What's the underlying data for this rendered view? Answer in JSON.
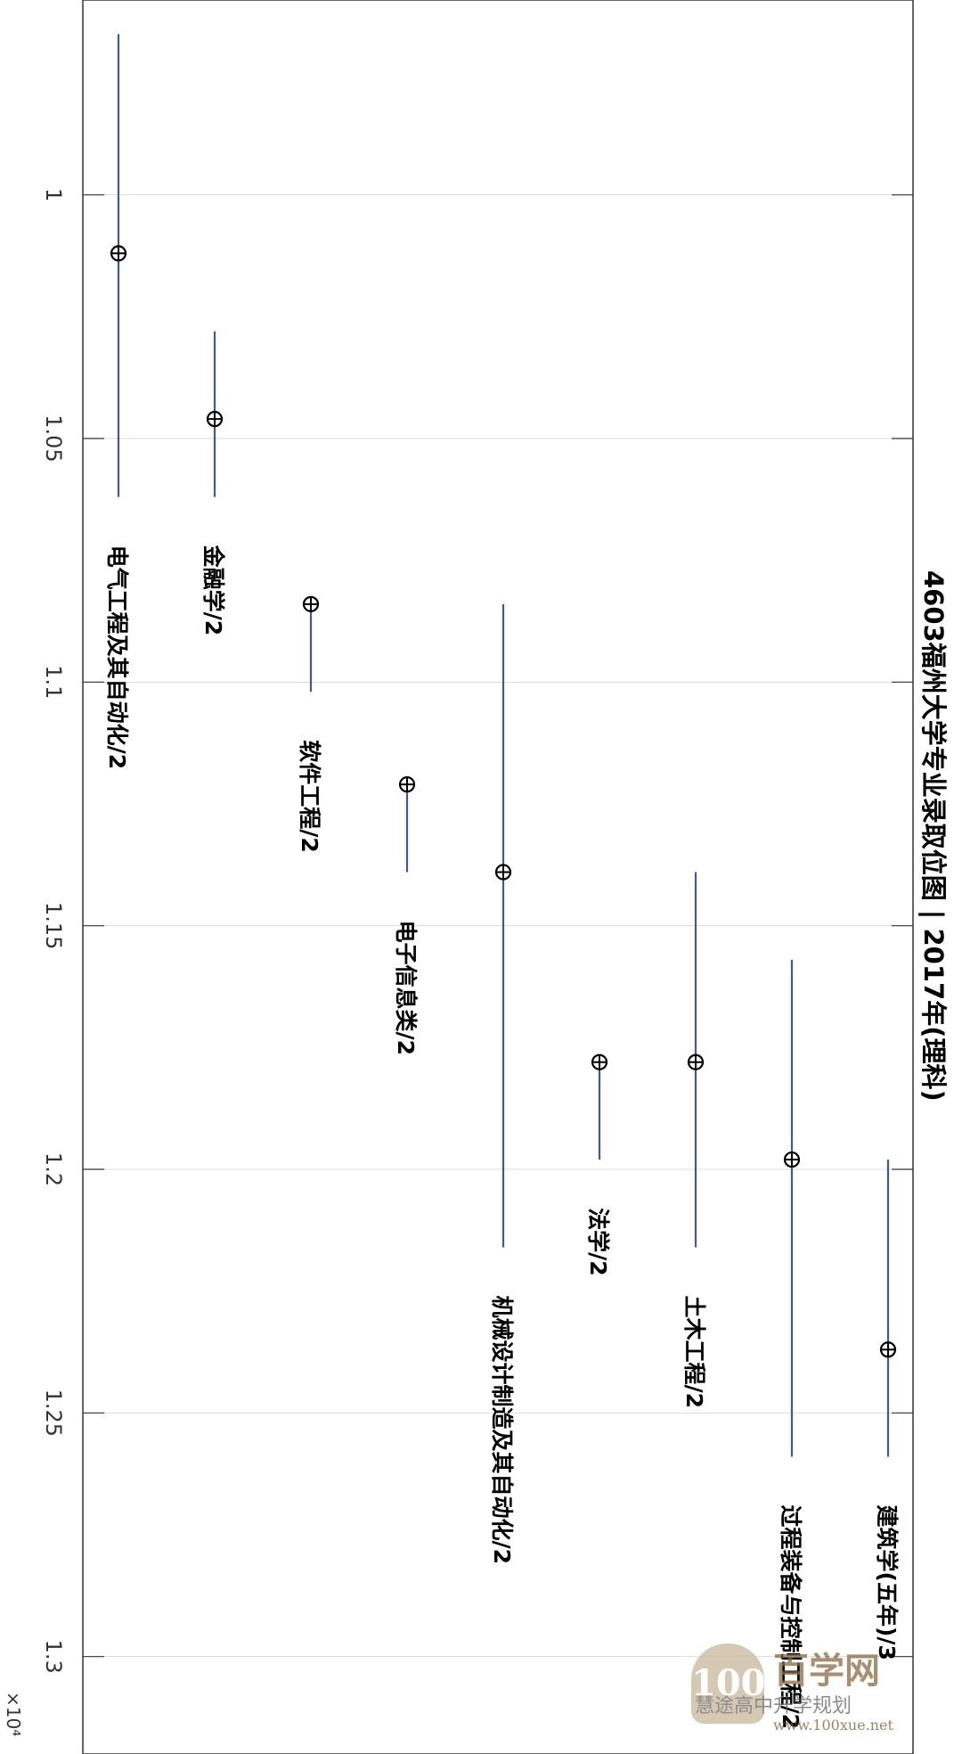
{
  "chart_data": {
    "type": "range",
    "orientation": "rotated-90",
    "title": "4603福州大学专业录取位图 | 2017年(理科)",
    "value_axis": {
      "ylim": [
        0.96,
        1.32
      ],
      "ticks": [
        1,
        1.05,
        1.1,
        1.15,
        1.2,
        1.25,
        1.3
      ],
      "tick_labels": [
        "1",
        "1.05",
        "1.1",
        "1.15",
        "1.2",
        "1.25",
        "1.3"
      ],
      "multiplier_label": "×10⁴",
      "grid": true
    },
    "series": [
      {
        "label": "电气工程及其自动化/2",
        "low": 0.967,
        "high": 1.062,
        "point": 1.012
      },
      {
        "label": "金融学/2",
        "low": 1.028,
        "high": 1.062,
        "point": 1.046
      },
      {
        "label": "软件工程/2",
        "low": 1.084,
        "high": 1.102,
        "point": 1.084
      },
      {
        "label": "电子信息类/2",
        "low": 1.121,
        "high": 1.139,
        "point": 1.121
      },
      {
        "label": "机械设计制造及其自动化/2",
        "low": 1.084,
        "high": 1.216,
        "point": 1.139
      },
      {
        "label": "法学/2",
        "low": 1.178,
        "high": 1.198,
        "point": 1.178
      },
      {
        "label": "土木工程/2",
        "low": 1.139,
        "high": 1.216,
        "point": 1.178
      },
      {
        "label": "过程装备与控制工程/2",
        "low": 1.157,
        "high": 1.259,
        "point": 1.198
      },
      {
        "label": "建筑学(五年)/3",
        "low": 1.198,
        "high": 1.259,
        "point": 1.237
      }
    ],
    "colors": {
      "range_line": "#3b5a9a",
      "marker": "#000000",
      "grid": "#dcdcdc",
      "axis": "#333333"
    }
  },
  "watermark": {
    "brand": "百学网",
    "url": "www.100xue.net",
    "account": "慧途高中升学规划"
  }
}
